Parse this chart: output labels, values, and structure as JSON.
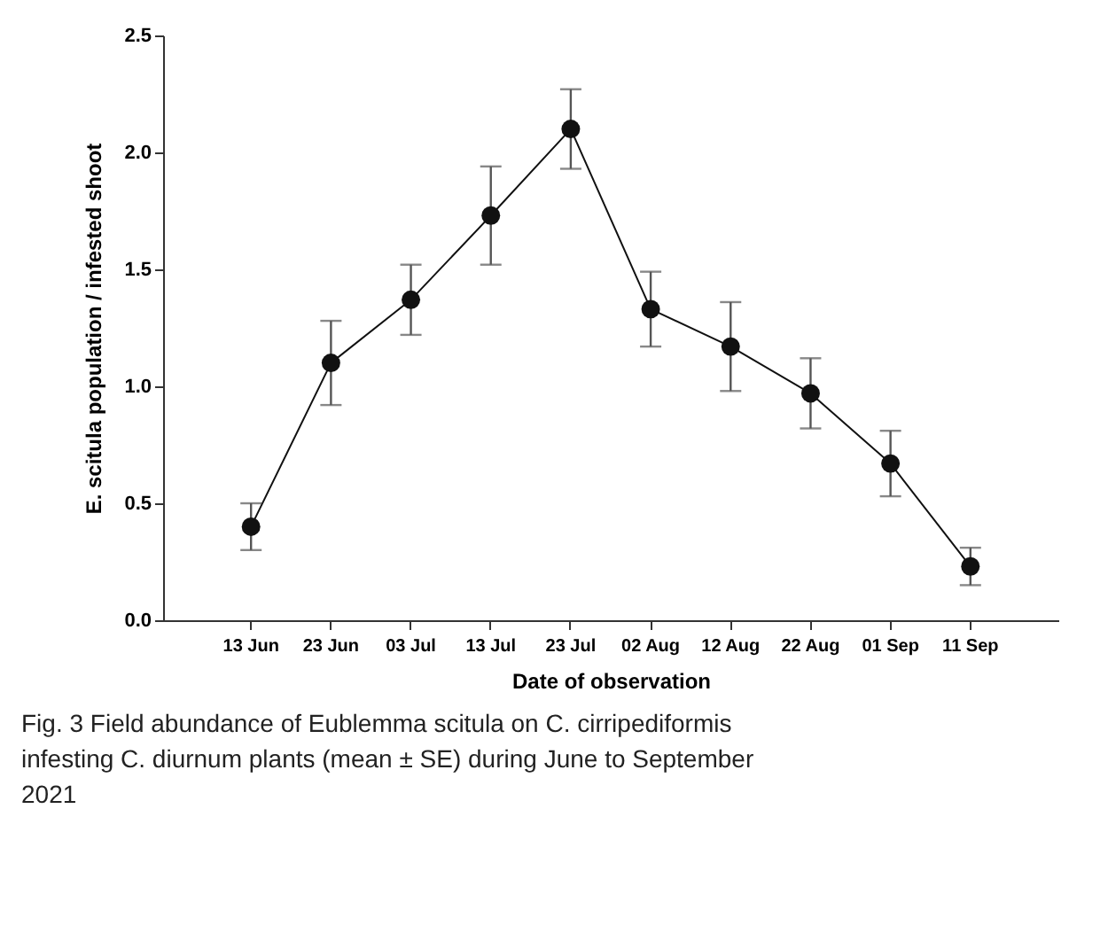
{
  "chart_data": {
    "type": "line",
    "xlabel": "Date of observation",
    "ylabel": "E. scitula population / infested shoot",
    "categories": [
      "13 Jun",
      "23 Jun",
      "03 Jul",
      "13 Jul",
      "23 Jul",
      "02 Aug",
      "12 Aug",
      "22 Aug",
      "01 Sep",
      "11 Sep"
    ],
    "series": [
      {
        "color": "#111111",
        "values": [
          0.4,
          1.1,
          1.37,
          1.73,
          2.1,
          1.33,
          1.17,
          0.97,
          0.67,
          0.23
        ],
        "errors": [
          [
            0.3,
            0.5
          ],
          [
            0.92,
            1.28
          ],
          [
            1.22,
            1.52
          ],
          [
            1.52,
            1.94
          ],
          [
            1.93,
            2.27
          ],
          [
            1.17,
            1.49
          ],
          [
            0.98,
            1.36
          ],
          [
            0.82,
            1.12
          ],
          [
            0.53,
            0.81
          ],
          [
            0.15,
            0.31
          ]
        ]
      }
    ],
    "ylim": [
      0,
      2.5
    ],
    "yticks": [
      {
        "value": 0,
        "label": "0.0"
      },
      {
        "value": 0.5,
        "label": "0.5"
      },
      {
        "value": 1,
        "label": "1.0"
      },
      {
        "value": 1.5,
        "label": "1.5"
      },
      {
        "value": 2,
        "label": "2.0"
      },
      {
        "value": 2.5,
        "label": "2.5"
      }
    ],
    "marker": "circle",
    "line_style": "solid",
    "annotations": [
      "Fig. 3  Field abundance of Eublemma scitula on C. cirripediformis infesting C. diurnum plants (mean ± SE) during June to September 2021"
    ]
  }
}
